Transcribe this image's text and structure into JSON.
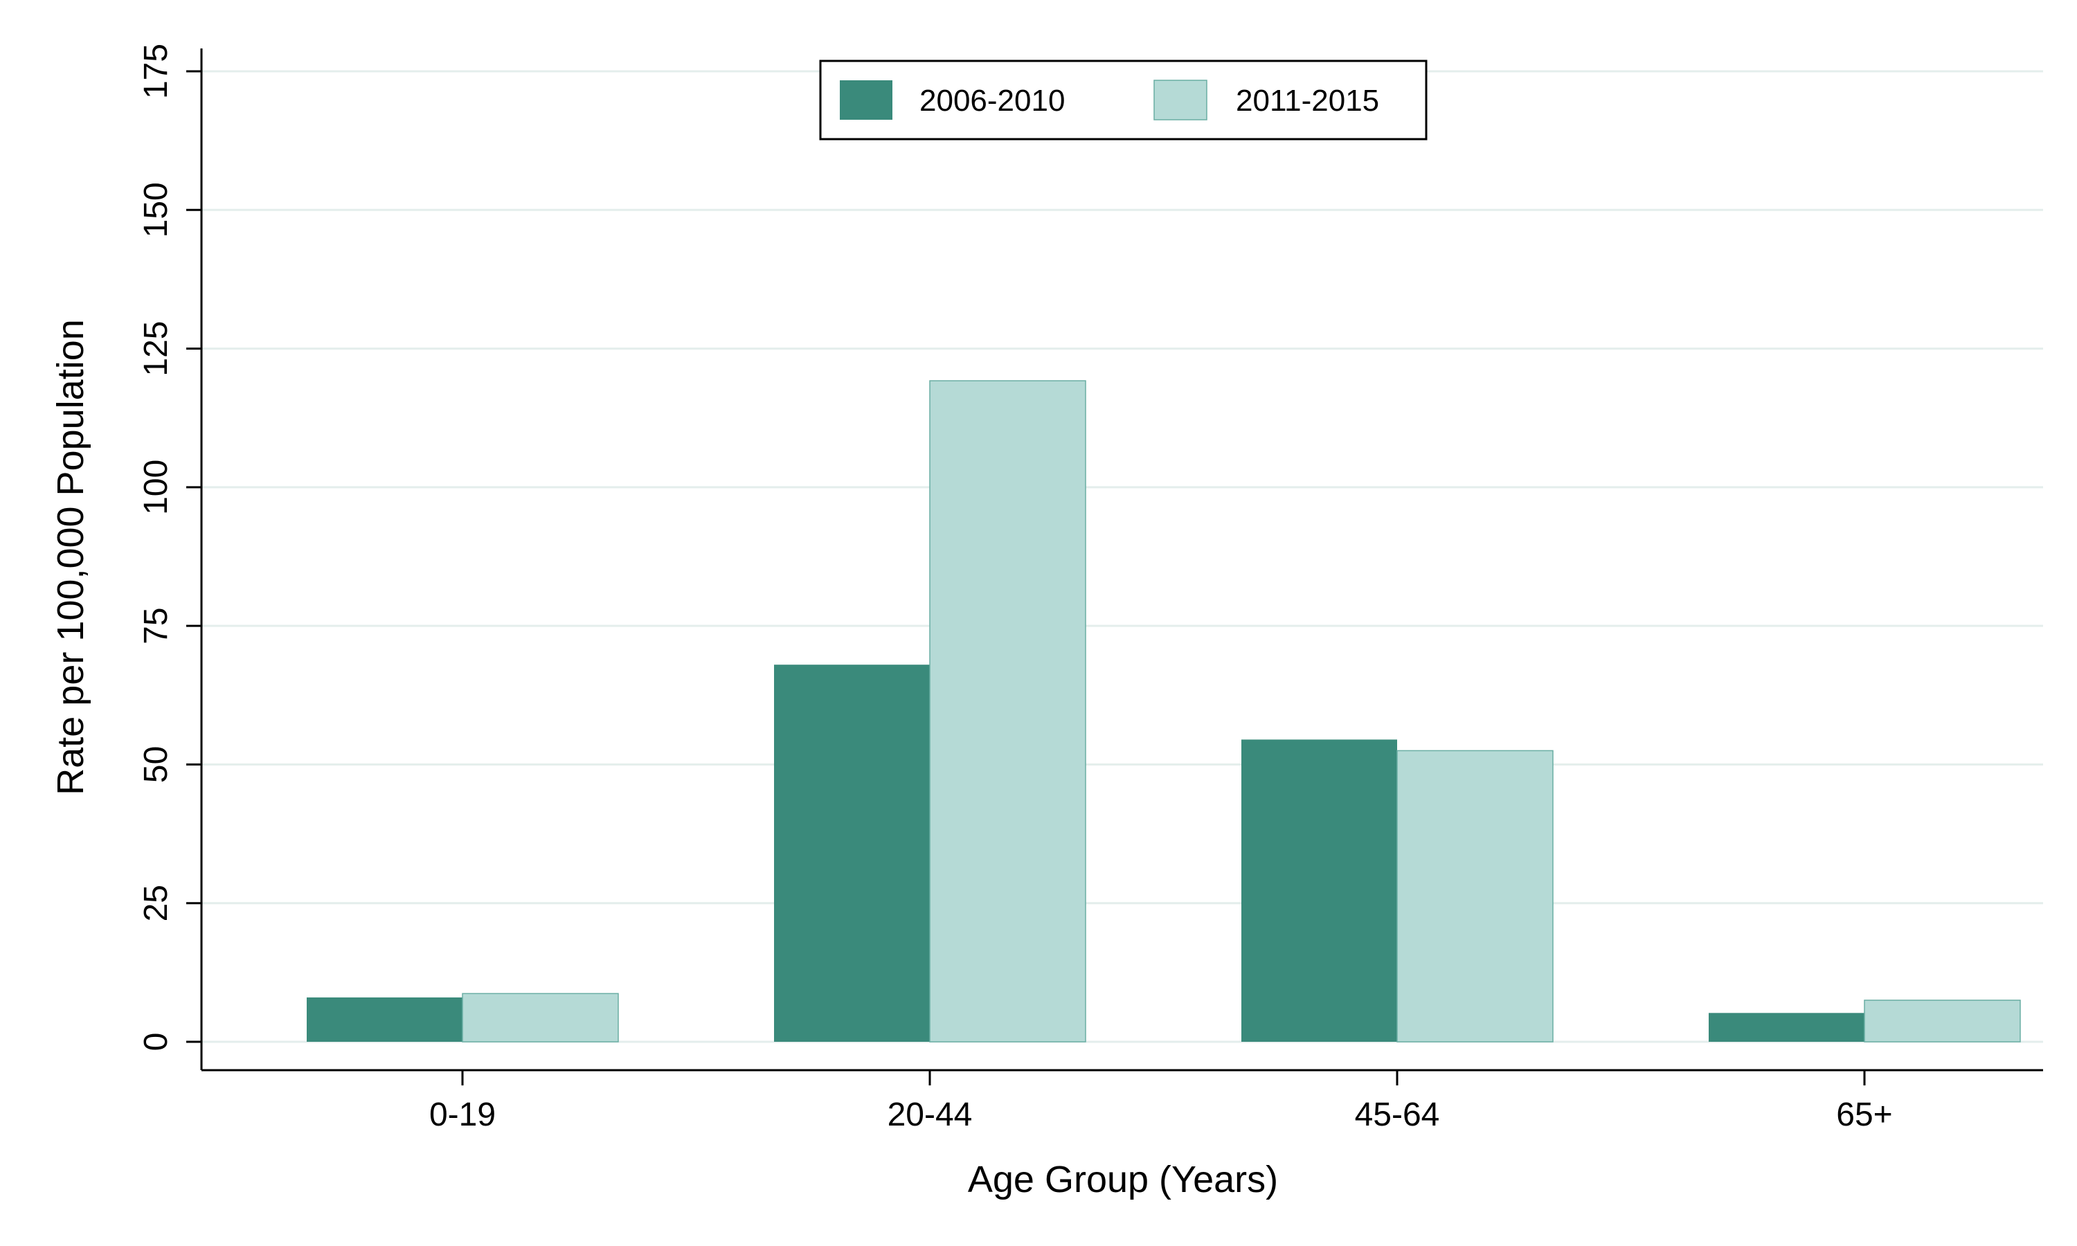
{
  "chart_data": {
    "type": "bar",
    "title": "",
    "xlabel": "Age Group (Years)",
    "ylabel": "Rate per 100,000 Population",
    "categories": [
      "0-19",
      "20-44",
      "45-64",
      "65+"
    ],
    "series": [
      {
        "name": "2006-2010",
        "values": [
          8,
          68,
          54.5,
          5.2
        ],
        "color": "#3a8a7b"
      },
      {
        "name": "2011-2015",
        "values": [
          8.7,
          119.2,
          52.5,
          7.5
        ],
        "color": "#b5dad6"
      }
    ],
    "ylim": [
      0,
      175
    ],
    "yticks": [
      0,
      25,
      50,
      75,
      100,
      125,
      150,
      175
    ],
    "grid": true,
    "gridColor": "#e4eeec",
    "legend": "top-center"
  }
}
